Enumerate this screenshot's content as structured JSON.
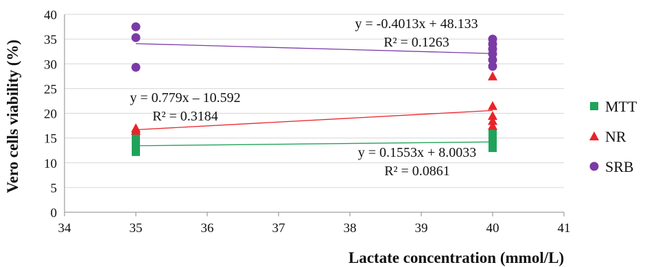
{
  "chart_data": {
    "type": "scatter",
    "title": "",
    "xlabel": "Lactate concentration (mmol/L)",
    "ylabel": "Vero cells viability (%)",
    "xlim": [
      34,
      41
    ],
    "ylim": [
      0,
      40
    ],
    "xticks": [
      "34",
      "35",
      "36",
      "37",
      "38",
      "39",
      "40",
      "41"
    ],
    "yticks": [
      "0",
      "5",
      "10",
      "15",
      "20",
      "25",
      "30",
      "35",
      "40"
    ],
    "grid": "horizontal",
    "legend_position": "right",
    "series": [
      {
        "name": "MTT",
        "marker": "square",
        "color": "#1fa35a",
        "points": [
          [
            35,
            12.2
          ],
          [
            35,
            13.3
          ],
          [
            35,
            14.4
          ],
          [
            35,
            15.5
          ],
          [
            40,
            13.0
          ],
          [
            40,
            14.1
          ],
          [
            40,
            15.1
          ],
          [
            40,
            16.0
          ]
        ],
        "trendline": {
          "slope": 0.1553,
          "intercept": 8.0033,
          "equation": "y = 0.1553x + 8.0033",
          "r2": "R² = 0.0861"
        }
      },
      {
        "name": "NR",
        "marker": "triangle",
        "color": "#e8242a",
        "points": [
          [
            35,
            16.5
          ],
          [
            35,
            17.0
          ],
          [
            40,
            17.5
          ],
          [
            40,
            18.5
          ],
          [
            40,
            19.5
          ],
          [
            40,
            21.5
          ],
          [
            40,
            27.5
          ]
        ],
        "trendline": {
          "slope": 0.779,
          "intercept": -10.592,
          "equation": "y = 0.779x – 10.592",
          "r2": "R² = 0.3184"
        }
      },
      {
        "name": "SRB",
        "marker": "circle",
        "color": "#7b3aa6",
        "points": [
          [
            35,
            29.3
          ],
          [
            35,
            35.3
          ],
          [
            35,
            37.5
          ],
          [
            40,
            29.5
          ],
          [
            40,
            30.8
          ],
          [
            40,
            32.0
          ],
          [
            40,
            33.0
          ],
          [
            40,
            34.0
          ],
          [
            40,
            35.0
          ]
        ],
        "trendline": {
          "slope": -0.4013,
          "intercept": 48.133,
          "equation": "y = -0.4013x + 48.133",
          "r2": "R² = 0.1263"
        }
      }
    ]
  }
}
